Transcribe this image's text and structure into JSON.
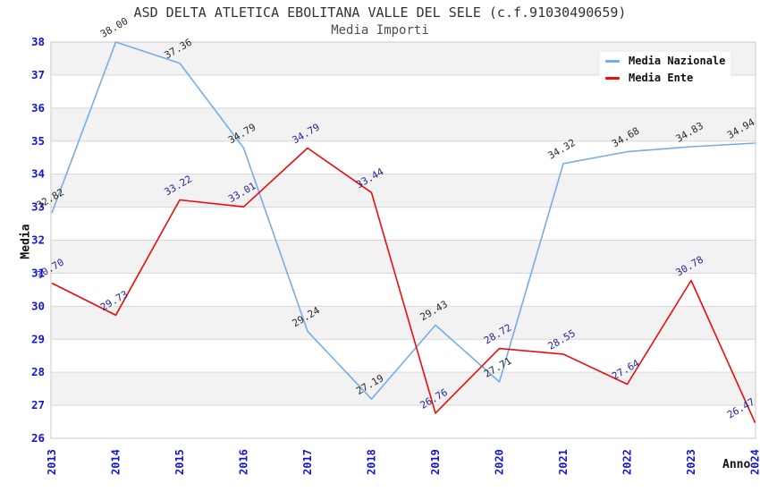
{
  "header": {
    "title": "ASD DELTA ATLETICA EBOLITANA VALLE DEL SELE (c.f.91030490659)",
    "subtitle": "Media Importi"
  },
  "axes": {
    "y_title": "Media",
    "x_title": "Anno"
  },
  "legend": {
    "position": "top-right-inside",
    "items": [
      {
        "label": "Media Nazionale",
        "color": "#74ADE8"
      },
      {
        "label": "Media Ente",
        "color": "#F00A0A"
      }
    ]
  },
  "chart_data": {
    "type": "line",
    "title": "ASD DELTA ATLETICA EBOLITANA VALLE DEL SELE (c.f.91030490659)",
    "subtitle": "Media Importi",
    "xlabel": "Anno",
    "ylabel": "Media",
    "x": [
      2013,
      2014,
      2015,
      2016,
      2017,
      2018,
      2019,
      2020,
      2021,
      2022,
      2023,
      2024
    ],
    "ylim": [
      26,
      38
    ],
    "ytick_step": 1,
    "grid": "horizontal-gridlines-with-alternating-bands",
    "legend_position": "top-right",
    "series": [
      {
        "name": "Media Nazionale",
        "color": "#74ADE8",
        "label_color": "#2B2B2B",
        "values": [
          32.82,
          38.0,
          37.36,
          34.79,
          29.24,
          27.19,
          29.43,
          27.71,
          34.32,
          34.68,
          34.83,
          34.94
        ]
      },
      {
        "name": "Media Ente",
        "color": "#F00A0A",
        "label_color": "#26269B",
        "values": [
          30.7,
          29.73,
          33.22,
          33.01,
          34.79,
          33.44,
          26.76,
          28.72,
          28.55,
          27.64,
          30.78,
          26.47
        ]
      }
    ],
    "styles": {
      "tick_label_color": "#1414DB",
      "band_color": "#F2F2F2",
      "grid_color": "#D8D8D8",
      "plot_border_color": "#C9C9C9",
      "title_color": "#333333",
      "subtitle_color": "#4D4D4D"
    }
  }
}
